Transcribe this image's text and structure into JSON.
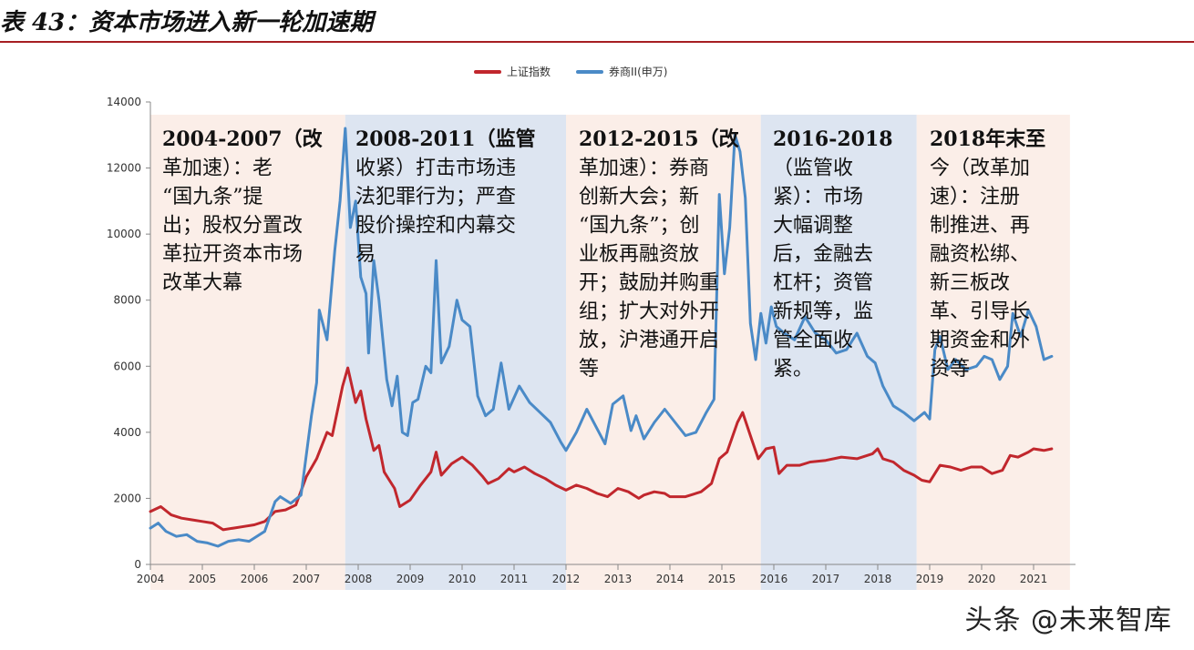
{
  "page_title": "表 43：资本市场进入新一轮加速期",
  "watermark": "头条 @未来智库",
  "colors": {
    "szzs": "#c1272d",
    "brokers": "#4a8ac7",
    "band_reform": "#fbeee8",
    "band_regulate": "#dde5f1"
  },
  "chart_data": {
    "type": "line",
    "title": "",
    "xlabel": "",
    "ylabel": "",
    "xlim": [
      2004.0,
      2021.7
    ],
    "ylim": [
      0,
      14000
    ],
    "yticks": [
      0,
      2000,
      4000,
      6000,
      8000,
      10000,
      12000,
      14000
    ],
    "xticks": [
      "2004",
      "2005",
      "2006",
      "2007",
      "2008",
      "2009",
      "2010",
      "2011",
      "2012",
      "2013",
      "2014",
      "2015",
      "2016",
      "2017",
      "2018",
      "2019",
      "2020",
      "2021"
    ],
    "legend_position": "top-center",
    "series": [
      {
        "name": "上证指数",
        "color": "#c1272d",
        "points": [
          [
            2004.0,
            1600
          ],
          [
            2004.2,
            1750
          ],
          [
            2004.4,
            1500
          ],
          [
            2004.6,
            1400
          ],
          [
            2004.8,
            1350
          ],
          [
            2005.0,
            1300
          ],
          [
            2005.2,
            1250
          ],
          [
            2005.4,
            1050
          ],
          [
            2005.6,
            1100
          ],
          [
            2005.8,
            1150
          ],
          [
            2006.0,
            1200
          ],
          [
            2006.2,
            1300
          ],
          [
            2006.4,
            1600
          ],
          [
            2006.6,
            1650
          ],
          [
            2006.8,
            1800
          ],
          [
            2007.0,
            2650
          ],
          [
            2007.2,
            3200
          ],
          [
            2007.4,
            4000
          ],
          [
            2007.5,
            3900
          ],
          [
            2007.7,
            5400
          ],
          [
            2007.8,
            5950
          ],
          [
            2007.95,
            4900
          ],
          [
            2008.05,
            5250
          ],
          [
            2008.15,
            4400
          ],
          [
            2008.3,
            3450
          ],
          [
            2008.4,
            3600
          ],
          [
            2008.5,
            2800
          ],
          [
            2008.7,
            2300
          ],
          [
            2008.8,
            1750
          ],
          [
            2008.9,
            1850
          ],
          [
            2009.0,
            1950
          ],
          [
            2009.2,
            2400
          ],
          [
            2009.4,
            2800
          ],
          [
            2009.5,
            3400
          ],
          [
            2009.6,
            2700
          ],
          [
            2009.8,
            3050
          ],
          [
            2010.0,
            3250
          ],
          [
            2010.2,
            3000
          ],
          [
            2010.4,
            2650
          ],
          [
            2010.5,
            2450
          ],
          [
            2010.7,
            2600
          ],
          [
            2010.9,
            2900
          ],
          [
            2011.0,
            2800
          ],
          [
            2011.2,
            2950
          ],
          [
            2011.4,
            2750
          ],
          [
            2011.6,
            2600
          ],
          [
            2011.8,
            2400
          ],
          [
            2012.0,
            2250
          ],
          [
            2012.2,
            2400
          ],
          [
            2012.4,
            2300
          ],
          [
            2012.6,
            2150
          ],
          [
            2012.8,
            2050
          ],
          [
            2013.0,
            2300
          ],
          [
            2013.2,
            2200
          ],
          [
            2013.4,
            2000
          ],
          [
            2013.5,
            2100
          ],
          [
            2013.7,
            2200
          ],
          [
            2013.9,
            2150
          ],
          [
            2014.0,
            2050
          ],
          [
            2014.3,
            2050
          ],
          [
            2014.6,
            2200
          ],
          [
            2014.8,
            2450
          ],
          [
            2014.95,
            3200
          ],
          [
            2015.1,
            3400
          ],
          [
            2015.3,
            4300
          ],
          [
            2015.4,
            4600
          ],
          [
            2015.55,
            3900
          ],
          [
            2015.7,
            3200
          ],
          [
            2015.85,
            3500
          ],
          [
            2016.0,
            3550
          ],
          [
            2016.1,
            2750
          ],
          [
            2016.25,
            3000
          ],
          [
            2016.5,
            3000
          ],
          [
            2016.7,
            3100
          ],
          [
            2017.0,
            3150
          ],
          [
            2017.3,
            3250
          ],
          [
            2017.6,
            3200
          ],
          [
            2017.9,
            3350
          ],
          [
            2018.0,
            3500
          ],
          [
            2018.1,
            3200
          ],
          [
            2018.3,
            3100
          ],
          [
            2018.5,
            2850
          ],
          [
            2018.7,
            2700
          ],
          [
            2018.85,
            2550
          ],
          [
            2019.0,
            2500
          ],
          [
            2019.2,
            3000
          ],
          [
            2019.4,
            2950
          ],
          [
            2019.6,
            2850
          ],
          [
            2019.8,
            2950
          ],
          [
            2020.0,
            2950
          ],
          [
            2020.2,
            2750
          ],
          [
            2020.4,
            2850
          ],
          [
            2020.55,
            3300
          ],
          [
            2020.7,
            3250
          ],
          [
            2020.9,
            3400
          ],
          [
            2021.0,
            3500
          ],
          [
            2021.2,
            3450
          ],
          [
            2021.35,
            3500
          ]
        ]
      },
      {
        "name": "券商II(申万)",
        "color": "#4a8ac7",
        "points": [
          [
            2004.0,
            1100
          ],
          [
            2004.15,
            1250
          ],
          [
            2004.3,
            1000
          ],
          [
            2004.5,
            850
          ],
          [
            2004.7,
            900
          ],
          [
            2004.9,
            700
          ],
          [
            2005.1,
            650
          ],
          [
            2005.3,
            550
          ],
          [
            2005.5,
            700
          ],
          [
            2005.7,
            750
          ],
          [
            2005.9,
            700
          ],
          [
            2006.0,
            800
          ],
          [
            2006.2,
            1000
          ],
          [
            2006.4,
            1900
          ],
          [
            2006.5,
            2050
          ],
          [
            2006.7,
            1850
          ],
          [
            2006.9,
            2100
          ],
          [
            2007.0,
            3300
          ],
          [
            2007.1,
            4500
          ],
          [
            2007.2,
            5500
          ],
          [
            2007.25,
            7700
          ],
          [
            2007.4,
            6800
          ],
          [
            2007.55,
            9500
          ],
          [
            2007.65,
            11000
          ],
          [
            2007.75,
            13200
          ],
          [
            2007.85,
            10200
          ],
          [
            2007.95,
            11000
          ],
          [
            2008.05,
            8700
          ],
          [
            2008.15,
            8200
          ],
          [
            2008.2,
            6400
          ],
          [
            2008.3,
            9200
          ],
          [
            2008.4,
            8000
          ],
          [
            2008.55,
            5600
          ],
          [
            2008.65,
            4800
          ],
          [
            2008.75,
            5700
          ],
          [
            2008.85,
            4000
          ],
          [
            2008.95,
            3900
          ],
          [
            2009.05,
            4900
          ],
          [
            2009.15,
            5000
          ],
          [
            2009.3,
            6000
          ],
          [
            2009.4,
            5800
          ],
          [
            2009.5,
            9200
          ],
          [
            2009.6,
            6100
          ],
          [
            2009.75,
            6600
          ],
          [
            2009.9,
            8000
          ],
          [
            2010.0,
            7400
          ],
          [
            2010.15,
            7200
          ],
          [
            2010.3,
            5100
          ],
          [
            2010.45,
            4500
          ],
          [
            2010.6,
            4700
          ],
          [
            2010.75,
            6100
          ],
          [
            2010.9,
            4700
          ],
          [
            2011.1,
            5400
          ],
          [
            2011.3,
            4900
          ],
          [
            2011.5,
            4600
          ],
          [
            2011.7,
            4300
          ],
          [
            2011.9,
            3700
          ],
          [
            2012.0,
            3450
          ],
          [
            2012.2,
            4000
          ],
          [
            2012.4,
            4700
          ],
          [
            2012.6,
            4100
          ],
          [
            2012.75,
            3650
          ],
          [
            2012.9,
            4850
          ],
          [
            2013.1,
            5100
          ],
          [
            2013.25,
            4050
          ],
          [
            2013.35,
            4500
          ],
          [
            2013.5,
            3800
          ],
          [
            2013.7,
            4300
          ],
          [
            2013.9,
            4700
          ],
          [
            2014.1,
            4300
          ],
          [
            2014.3,
            3900
          ],
          [
            2014.5,
            4000
          ],
          [
            2014.7,
            4600
          ],
          [
            2014.85,
            5000
          ],
          [
            2014.95,
            11200
          ],
          [
            2015.05,
            8800
          ],
          [
            2015.15,
            10200
          ],
          [
            2015.25,
            13000
          ],
          [
            2015.35,
            12500
          ],
          [
            2015.45,
            11100
          ],
          [
            2015.55,
            7300
          ],
          [
            2015.65,
            6200
          ],
          [
            2015.75,
            7600
          ],
          [
            2015.85,
            6700
          ],
          [
            2015.95,
            7800
          ],
          [
            2016.05,
            7200
          ],
          [
            2016.2,
            7000
          ],
          [
            2016.4,
            6800
          ],
          [
            2016.6,
            7500
          ],
          [
            2016.8,
            7000
          ],
          [
            2017.0,
            6800
          ],
          [
            2017.2,
            6400
          ],
          [
            2017.4,
            6500
          ],
          [
            2017.6,
            7000
          ],
          [
            2017.8,
            6300
          ],
          [
            2017.95,
            6100
          ],
          [
            2018.1,
            5400
          ],
          [
            2018.3,
            4800
          ],
          [
            2018.5,
            4600
          ],
          [
            2018.7,
            4350
          ],
          [
            2018.9,
            4600
          ],
          [
            2019.0,
            4400
          ],
          [
            2019.1,
            6500
          ],
          [
            2019.2,
            6900
          ],
          [
            2019.35,
            5900
          ],
          [
            2019.5,
            6200
          ],
          [
            2019.7,
            5900
          ],
          [
            2019.9,
            6000
          ],
          [
            2020.05,
            6300
          ],
          [
            2020.2,
            6200
          ],
          [
            2020.35,
            5600
          ],
          [
            2020.5,
            6000
          ],
          [
            2020.6,
            7600
          ],
          [
            2020.75,
            6900
          ],
          [
            2020.9,
            7700
          ],
          [
            2021.05,
            7200
          ],
          [
            2021.2,
            6200
          ],
          [
            2021.35,
            6300
          ]
        ]
      }
    ],
    "bands": [
      {
        "from": 2004.0,
        "to": 2007.75,
        "kind": "reform",
        "lines": [
          "2004-2007（改",
          "革加速）：老",
          "“国九条”提",
          "出；股权分置改",
          "革拉开资本市场",
          "改革大幕"
        ]
      },
      {
        "from": 2007.75,
        "to": 2012.0,
        "kind": "regulate",
        "lines": [
          "2008-2011（监管",
          "收紧）打击市场违",
          "法犯罪行为；严查",
          "股价操控和内幕交",
          "易"
        ]
      },
      {
        "from": 2012.0,
        "to": 2015.75,
        "kind": "reform",
        "lines": [
          "2012-2015（改",
          "革加速）：券商",
          "创新大会；新",
          "“国九条”；创",
          "业板再融资放",
          "开；鼓励并购重",
          "组；扩大对外开",
          "放，沪港通开启",
          "等"
        ]
      },
      {
        "from": 2015.75,
        "to": 2018.75,
        "kind": "regulate",
        "lines": [
          "2016-2018",
          "（监管收",
          "紧）：市场",
          "大幅调整",
          "后，金融去",
          "杠杆；资管",
          "新规等，监",
          "管全面收",
          "紧。"
        ]
      },
      {
        "from": 2018.75,
        "to": 2021.7,
        "kind": "reform",
        "lines": [
          "2018年末至",
          "今（改革加",
          "速）：注册",
          "制推进、再",
          "融资松绑、",
          "新三板改",
          "革、引导长",
          "期资金和外",
          "资等"
        ]
      }
    ]
  }
}
